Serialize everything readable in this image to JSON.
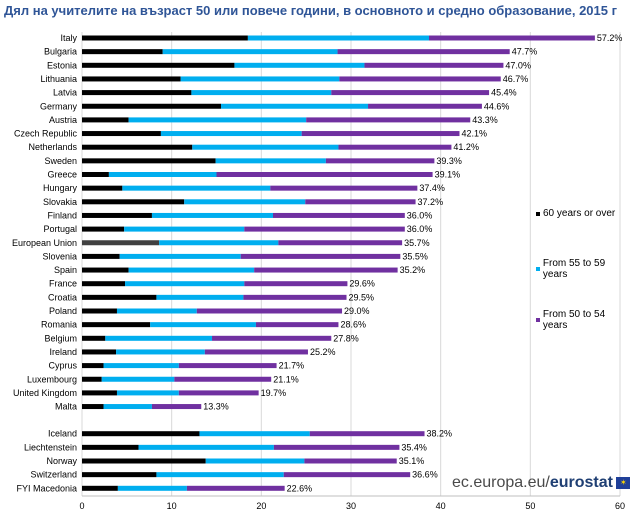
{
  "chart_data": {
    "type": "bar",
    "orientation": "horizontal",
    "stacked": true,
    "title": "Дял на учителите на възраст 50 или повече години, в основното и средно образование, 2015 г",
    "xlim": [
      0,
      60
    ],
    "xticks": [
      0,
      10,
      20,
      30,
      40,
      50,
      60
    ],
    "grid": true,
    "legend_position": "right",
    "series": [
      {
        "name": "60 years or over",
        "color": "#000000"
      },
      {
        "name": "From 55 to 59 years",
        "color": "#00aeef"
      },
      {
        "name": "From 50 to 54 years",
        "color": "#7030a0"
      }
    ],
    "groups": [
      {
        "rows": [
          {
            "category": "Italy",
            "values": [
              18.5,
              20.2,
              18.5
            ],
            "total_label": "57.2%"
          },
          {
            "category": "Bulgaria",
            "values": [
              9.0,
              19.5,
              19.2
            ],
            "total_label": "47.7%"
          },
          {
            "category": "Estonia",
            "values": [
              17.0,
              14.5,
              15.5
            ],
            "total_label": "47.0%"
          },
          {
            "category": "Lithuania",
            "values": [
              11.0,
              17.7,
              18.0
            ],
            "total_label": "46.7%"
          },
          {
            "category": "Latvia",
            "values": [
              12.2,
              15.6,
              17.6
            ],
            "total_label": "45.4%"
          },
          {
            "category": "Germany",
            "values": [
              15.5,
              16.4,
              12.7
            ],
            "total_label": "44.6%"
          },
          {
            "category": "Austria",
            "values": [
              5.2,
              19.8,
              18.3
            ],
            "total_label": "43.3%"
          },
          {
            "category": "Czech Republic",
            "values": [
              8.8,
              15.7,
              17.6
            ],
            "total_label": "42.1%"
          },
          {
            "category": "Netherlands",
            "values": [
              12.3,
              16.3,
              12.6
            ],
            "total_label": "41.2%"
          },
          {
            "category": "Sweden",
            "values": [
              14.9,
              12.3,
              12.1
            ],
            "total_label": "39.3%"
          },
          {
            "category": "Greece",
            "values": [
              3.0,
              12.0,
              24.1
            ],
            "total_label": "39.1%"
          },
          {
            "category": "Hungary",
            "values": [
              4.5,
              16.5,
              16.4
            ],
            "total_label": "37.4%"
          },
          {
            "category": "Slovakia",
            "values": [
              11.4,
              13.5,
              12.3
            ],
            "total_label": "37.2%"
          },
          {
            "category": "Finland",
            "values": [
              7.8,
              13.5,
              14.7
            ],
            "total_label": "36.0%"
          },
          {
            "category": "Portugal",
            "values": [
              4.7,
              13.4,
              17.9
            ],
            "total_label": "36.0%"
          },
          {
            "category": "European Union",
            "values": [
              8.6,
              13.3,
              13.8
            ],
            "total_label": "35.7%"
          },
          {
            "category": "Slovenia",
            "values": [
              4.2,
              13.5,
              17.8
            ],
            "total_label": "35.5%"
          },
          {
            "category": "Spain",
            "values": [
              5.2,
              14.0,
              16.0
            ],
            "total_label": "35.2%"
          },
          {
            "category": "France",
            "values": [
              4.8,
              13.3,
              11.5
            ],
            "total_label": "29.6%"
          },
          {
            "category": "Croatia",
            "values": [
              8.3,
              9.7,
              11.5
            ],
            "total_label": "29.5%"
          },
          {
            "category": "Poland",
            "values": [
              3.9,
              8.9,
              16.2
            ],
            "total_label": "29.0%"
          },
          {
            "category": "Romania",
            "values": [
              7.6,
              11.8,
              9.2
            ],
            "total_label": "28.6%"
          },
          {
            "category": "Belgium",
            "values": [
              2.6,
              11.9,
              13.3
            ],
            "total_label": "27.8%"
          },
          {
            "category": "Ireland",
            "values": [
              3.8,
              9.9,
              11.5
            ],
            "total_label": "25.2%"
          },
          {
            "category": "Cyprus",
            "values": [
              2.4,
              8.4,
              10.9
            ],
            "total_label": "21.7%"
          },
          {
            "category": "Luxembourg",
            "values": [
              2.2,
              8.1,
              10.8
            ],
            "total_label": "21.1%"
          },
          {
            "category": "United Kingdom",
            "values": [
              3.9,
              6.9,
              8.9
            ],
            "total_label": "19.7%"
          },
          {
            "category": "Malta",
            "values": [
              2.4,
              5.4,
              5.5
            ],
            "total_label": "13.3%"
          }
        ]
      },
      {
        "rows": [
          {
            "category": "Iceland",
            "values": [
              13.1,
              12.3,
              12.8
            ],
            "total_label": "38.2%"
          },
          {
            "category": "Liechtenstein",
            "values": [
              6.3,
              15.1,
              14.0
            ],
            "total_label": "35.4%"
          },
          {
            "category": "Norway",
            "values": [
              13.8,
              11.0,
              10.3
            ],
            "total_label": "35.1%"
          },
          {
            "category": "Switzerland",
            "values": [
              8.3,
              14.2,
              14.1
            ],
            "total_label": "36.6%"
          },
          {
            "category": "FYI Macedonia",
            "values": [
              4.0,
              7.7,
              10.9
            ],
            "total_label": "22.6%"
          }
        ]
      }
    ],
    "highlight_category": "European Union",
    "highlight_color": "#404040"
  },
  "footer": {
    "url": "ec.europa.eu/",
    "brand": "eurostat",
    "flag": "eu-flag-icon"
  }
}
